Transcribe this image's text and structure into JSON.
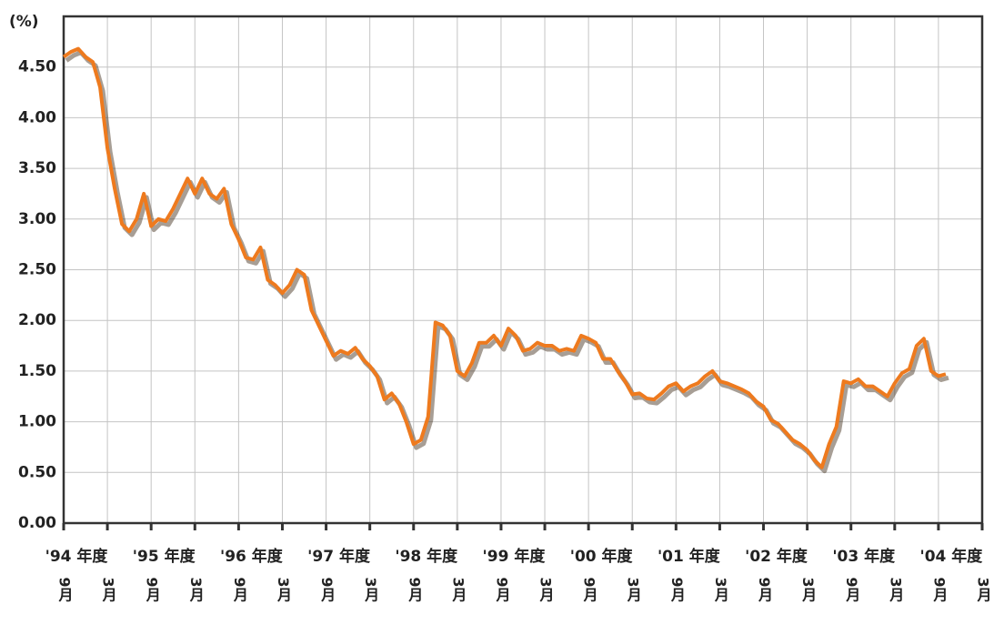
{
  "chart_data": {
    "type": "line",
    "y_label": "(%)",
    "x": [
      "1994-09",
      "1994-10",
      "1994-11",
      "1994-12",
      "1995-01",
      "1995-02",
      "1995-03",
      "1995-04",
      "1995-05",
      "1995-06",
      "1995-07",
      "1995-08",
      "1995-09",
      "1995-10",
      "1995-11",
      "1995-12",
      "1996-01",
      "1996-02",
      "1996-03",
      "1996-04",
      "1996-05",
      "1996-06",
      "1996-07",
      "1996-08",
      "1996-09",
      "1996-10",
      "1996-11",
      "1996-12",
      "1997-01",
      "1997-02",
      "1997-03",
      "1997-04",
      "1997-05",
      "1997-06",
      "1997-07",
      "1997-08",
      "1997-09",
      "1997-10",
      "1997-11",
      "1997-12",
      "1998-01",
      "1998-02",
      "1998-03",
      "1998-04",
      "1998-05",
      "1998-06",
      "1998-07",
      "1998-08",
      "1998-09",
      "1998-10",
      "1998-11",
      "1998-12",
      "1999-01",
      "1999-02",
      "1999-03",
      "1999-04",
      "1999-05",
      "1999-06",
      "1999-07",
      "1999-08",
      "1999-09",
      "1999-10",
      "1999-11",
      "1999-12",
      "2000-01",
      "2000-02",
      "2000-03",
      "2000-04",
      "2000-05",
      "2000-06",
      "2000-07",
      "2000-08",
      "2000-09",
      "2000-10",
      "2000-11",
      "2000-12",
      "2001-01",
      "2001-02",
      "2001-03",
      "2001-04",
      "2001-05",
      "2001-06",
      "2001-07",
      "2001-08",
      "2001-09",
      "2001-10",
      "2001-11",
      "2001-12",
      "2002-01",
      "2002-02",
      "2002-03",
      "2002-04",
      "2002-05",
      "2002-06",
      "2002-07",
      "2002-08",
      "2002-09",
      "2002-10",
      "2002-11",
      "2002-12",
      "2003-01",
      "2003-02",
      "2003-03",
      "2003-04",
      "2003-05",
      "2003-06",
      "2003-07",
      "2003-08",
      "2003-09",
      "2003-10",
      "2003-11",
      "2003-12",
      "2004-01",
      "2004-02",
      "2004-03",
      "2004-04",
      "2004-05",
      "2004-06",
      "2004-07",
      "2004-08",
      "2004-09",
      "2004-10"
    ],
    "series": [
      {
        "color": "#ee7a1e",
        "values": [
          4.6,
          4.65,
          4.68,
          4.6,
          4.55,
          4.3,
          3.7,
          3.3,
          2.95,
          2.88,
          3.0,
          3.25,
          2.93,
          3.0,
          2.98,
          3.1,
          3.25,
          3.4,
          3.25,
          3.4,
          3.25,
          3.2,
          3.3,
          2.95,
          2.8,
          2.62,
          2.6,
          2.72,
          2.4,
          2.35,
          2.27,
          2.35,
          2.5,
          2.45,
          2.1,
          1.95,
          1.8,
          1.65,
          1.7,
          1.67,
          1.73,
          1.62,
          1.55,
          1.45,
          1.22,
          1.28,
          1.18,
          1.0,
          0.78,
          0.82,
          1.05,
          1.98,
          1.95,
          1.85,
          1.5,
          1.45,
          1.58,
          1.78,
          1.78,
          1.85,
          1.75,
          1.92,
          1.85,
          1.7,
          1.72,
          1.78,
          1.75,
          1.75,
          1.7,
          1.72,
          1.7,
          1.85,
          1.82,
          1.78,
          1.62,
          1.62,
          1.5,
          1.4,
          1.27,
          1.28,
          1.23,
          1.22,
          1.28,
          1.35,
          1.38,
          1.3,
          1.35,
          1.38,
          1.45,
          1.5,
          1.4,
          1.38,
          1.35,
          1.32,
          1.28,
          1.2,
          1.15,
          1.02,
          0.98,
          0.9,
          0.82,
          0.78,
          0.72,
          0.62,
          0.55,
          0.78,
          0.95,
          1.4,
          1.38,
          1.42,
          1.35,
          1.35,
          1.3,
          1.25,
          1.38,
          1.48,
          1.52,
          1.75,
          1.82,
          1.5,
          1.45,
          1.47
        ]
      }
    ],
    "xlim": [
      "1994-09",
      "2005-03"
    ],
    "xticks": [
      {
        "value": "1994-09",
        "label": "9月"
      },
      {
        "value": "1995-03",
        "label": "3月"
      },
      {
        "value": "1995-09",
        "label": "9月"
      },
      {
        "value": "1996-03",
        "label": "3月"
      },
      {
        "value": "1996-09",
        "label": "9月"
      },
      {
        "value": "1997-03",
        "label": "3月"
      },
      {
        "value": "1997-09",
        "label": "9月"
      },
      {
        "value": "1998-03",
        "label": "3月"
      },
      {
        "value": "1998-09",
        "label": "9月"
      },
      {
        "value": "1999-03",
        "label": "3月"
      },
      {
        "value": "1999-09",
        "label": "9月"
      },
      {
        "value": "2000-03",
        "label": "3月"
      },
      {
        "value": "2000-09",
        "label": "9月"
      },
      {
        "value": "2001-03",
        "label": "3月"
      },
      {
        "value": "2001-09",
        "label": "9月"
      },
      {
        "value": "2002-03",
        "label": "3月"
      },
      {
        "value": "2002-09",
        "label": "9月"
      },
      {
        "value": "2003-03",
        "label": "3月"
      },
      {
        "value": "2003-09",
        "label": "9月"
      },
      {
        "value": "2004-03",
        "label": "3月"
      },
      {
        "value": "2004-09",
        "label": "9月"
      },
      {
        "value": "2005-03",
        "label": "3月"
      }
    ],
    "fiscal_years": [
      "'94 年度",
      "'95 年度",
      "'96 年度",
      "'97 年度",
      "'98 年度",
      "'99 年度",
      "'00 年度",
      "'01 年度",
      "'02 年度",
      "'03 年度",
      "'04 年度"
    ],
    "ylim": [
      0,
      5.0
    ],
    "yticks": [
      {
        "value": 0,
        "label": "0.00"
      },
      {
        "value": 0.5,
        "label": "0.50"
      },
      {
        "value": 1,
        "label": "1.00"
      },
      {
        "value": 1.5,
        "label": "1.50"
      },
      {
        "value": 2,
        "label": "2.00"
      },
      {
        "value": 2.5,
        "label": "2.50"
      },
      {
        "value": 3,
        "label": "3.00"
      },
      {
        "value": 3.5,
        "label": "3.50"
      },
      {
        "value": 4,
        "label": "4.00"
      },
      {
        "value": 4.5,
        "label": "4.50"
      }
    ],
    "grid": true
  }
}
